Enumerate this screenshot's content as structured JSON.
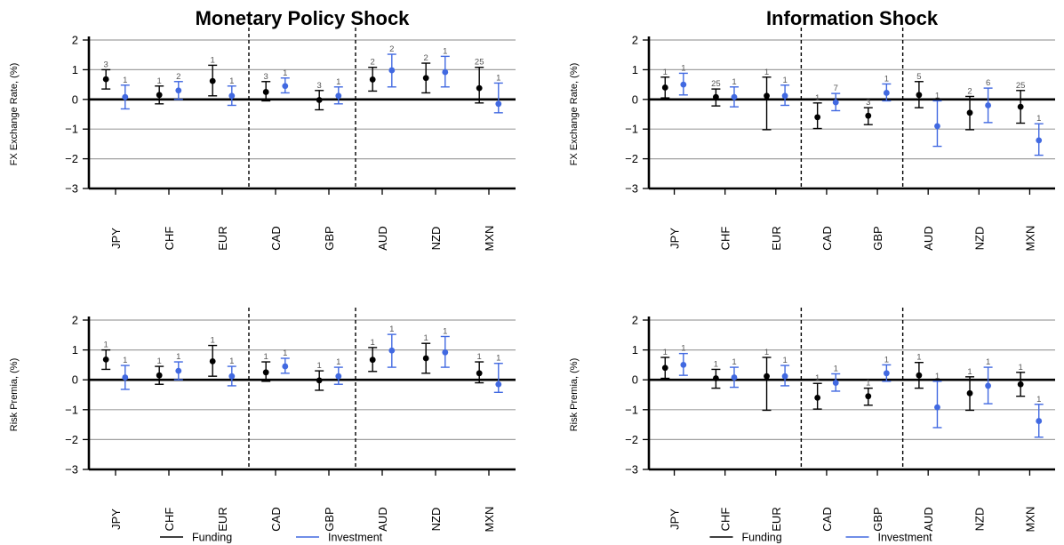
{
  "colors": {
    "funding": "#000000",
    "investment": "#4169E1",
    "grid": "#a0a0a0"
  },
  "legend": {
    "funding": "Funding",
    "investment": "Investment"
  },
  "chart_data": [
    {
      "type": "scatter",
      "title": "Monetary Policy Shock",
      "ylabel": "FX Exchange Rate, (%)",
      "ylim": [
        -3,
        2
      ],
      "yticks": [
        -3,
        -2,
        -1,
        0,
        1,
        2
      ],
      "categories": [
        "JPY",
        "CHF",
        "EUR",
        "CAD",
        "GBP",
        "AUD",
        "NZD",
        "MXN"
      ],
      "series": [
        {
          "name": "Funding",
          "values": [
            0.68,
            0.15,
            0.62,
            0.25,
            -0.02,
            0.67,
            0.72,
            0.38
          ],
          "lower": [
            0.35,
            -0.15,
            0.12,
            -0.05,
            -0.35,
            0.28,
            0.22,
            -0.12
          ],
          "upper": [
            1.0,
            0.45,
            1.15,
            0.6,
            0.3,
            1.08,
            1.22,
            1.08
          ],
          "labels": [
            "3",
            "1",
            "1",
            "3",
            "3",
            "2",
            "2",
            "25"
          ]
        },
        {
          "name": "Investment",
          "values": [
            0.08,
            0.3,
            0.12,
            0.45,
            0.12,
            0.98,
            0.92,
            -0.15
          ],
          "lower": [
            -0.32,
            0.0,
            -0.2,
            0.22,
            -0.15,
            0.42,
            0.42,
            -0.45
          ],
          "upper": [
            0.48,
            0.6,
            0.45,
            0.72,
            0.42,
            1.52,
            1.45,
            0.55
          ],
          "labels": [
            "1",
            "2",
            "1",
            "1",
            "1",
            "2",
            "1",
            "1"
          ]
        }
      ]
    },
    {
      "type": "scatter",
      "title": "Information Shock",
      "ylabel": "FX Exchange Rate, (%)",
      "ylim": [
        -3,
        2
      ],
      "yticks": [
        -3,
        -2,
        -1,
        0,
        1,
        2
      ],
      "categories": [
        "JPY",
        "CHF",
        "EUR",
        "CAD",
        "GBP",
        "AUD",
        "NZD",
        "MXN"
      ],
      "series": [
        {
          "name": "Funding",
          "values": [
            0.4,
            0.08,
            0.12,
            -0.6,
            -0.55,
            0.15,
            -0.45,
            -0.25
          ],
          "lower": [
            0.05,
            -0.22,
            -1.02,
            -0.98,
            -0.85,
            -0.28,
            -1.02,
            -0.8
          ],
          "upper": [
            0.75,
            0.35,
            0.75,
            -0.12,
            -0.28,
            0.6,
            0.1,
            0.3
          ],
          "labels": [
            "1",
            "25",
            "1",
            "1",
            "3",
            "5",
            "2",
            "25"
          ]
        },
        {
          "name": "Investment",
          "values": [
            0.5,
            0.08,
            0.12,
            -0.1,
            0.22,
            -0.9,
            -0.2,
            -1.38
          ],
          "lower": [
            0.15,
            -0.25,
            -0.2,
            -0.38,
            -0.05,
            -1.58,
            -0.78,
            -1.88
          ],
          "upper": [
            0.88,
            0.42,
            0.48,
            0.2,
            0.52,
            -0.05,
            0.38,
            -0.82
          ],
          "labels": [
            "1",
            "1",
            "1",
            "7",
            "1",
            "1",
            "6",
            "1"
          ]
        }
      ]
    },
    {
      "type": "scatter",
      "ylabel": "Risk Premia, (%)",
      "ylim": [
        -3,
        2
      ],
      "yticks": [
        -3,
        -2,
        -1,
        0,
        1,
        2
      ],
      "categories": [
        "JPY",
        "CHF",
        "EUR",
        "CAD",
        "GBP",
        "AUD",
        "NZD",
        "MXN"
      ],
      "series": [
        {
          "name": "Funding",
          "values": [
            0.68,
            0.15,
            0.62,
            0.25,
            -0.02,
            0.67,
            0.72,
            0.22
          ],
          "lower": [
            0.35,
            -0.15,
            0.12,
            -0.05,
            -0.35,
            0.28,
            0.22,
            -0.1
          ],
          "upper": [
            1.0,
            0.45,
            1.15,
            0.6,
            0.3,
            1.08,
            1.22,
            0.6
          ],
          "labels": [
            "1",
            "1",
            "1",
            "1",
            "1",
            "1",
            "1",
            "1"
          ]
        },
        {
          "name": "Investment",
          "values": [
            0.08,
            0.3,
            0.12,
            0.45,
            0.12,
            0.98,
            0.92,
            -0.15
          ],
          "lower": [
            -0.32,
            0.0,
            -0.2,
            0.22,
            -0.15,
            0.42,
            0.42,
            -0.42
          ],
          "upper": [
            0.48,
            0.6,
            0.45,
            0.72,
            0.42,
            1.52,
            1.45,
            0.55
          ],
          "labels": [
            "1",
            "1",
            "1",
            "1",
            "1",
            "1",
            "1",
            "1"
          ]
        }
      ]
    },
    {
      "type": "scatter",
      "ylabel": "Risk Premia, (%)",
      "ylim": [
        -3,
        2
      ],
      "yticks": [
        -3,
        -2,
        -1,
        0,
        1,
        2
      ],
      "categories": [
        "JPY",
        "CHF",
        "EUR",
        "CAD",
        "GBP",
        "AUD",
        "NZD",
        "MXN"
      ],
      "series": [
        {
          "name": "Funding",
          "values": [
            0.4,
            0.05,
            0.12,
            -0.6,
            -0.55,
            0.15,
            -0.45,
            -0.15
          ],
          "lower": [
            0.05,
            -0.28,
            -1.02,
            -0.98,
            -0.85,
            -0.28,
            -1.02,
            -0.55
          ],
          "upper": [
            0.75,
            0.35,
            0.75,
            -0.12,
            -0.28,
            0.58,
            0.1,
            0.25
          ],
          "labels": [
            "1",
            "1",
            "1",
            "1",
            "1",
            "1",
            "1",
            "1"
          ]
        },
        {
          "name": "Investment",
          "values": [
            0.5,
            0.08,
            0.12,
            -0.1,
            0.22,
            -0.92,
            -0.2,
            -1.38
          ],
          "lower": [
            0.15,
            -0.25,
            -0.2,
            -0.38,
            -0.05,
            -1.6,
            -0.8,
            -1.92
          ],
          "upper": [
            0.88,
            0.42,
            0.48,
            0.2,
            0.5,
            -0.05,
            0.42,
            -0.82
          ],
          "labels": [
            "1",
            "1",
            "1",
            "1",
            "1",
            "1",
            "1",
            "1"
          ]
        }
      ]
    }
  ]
}
